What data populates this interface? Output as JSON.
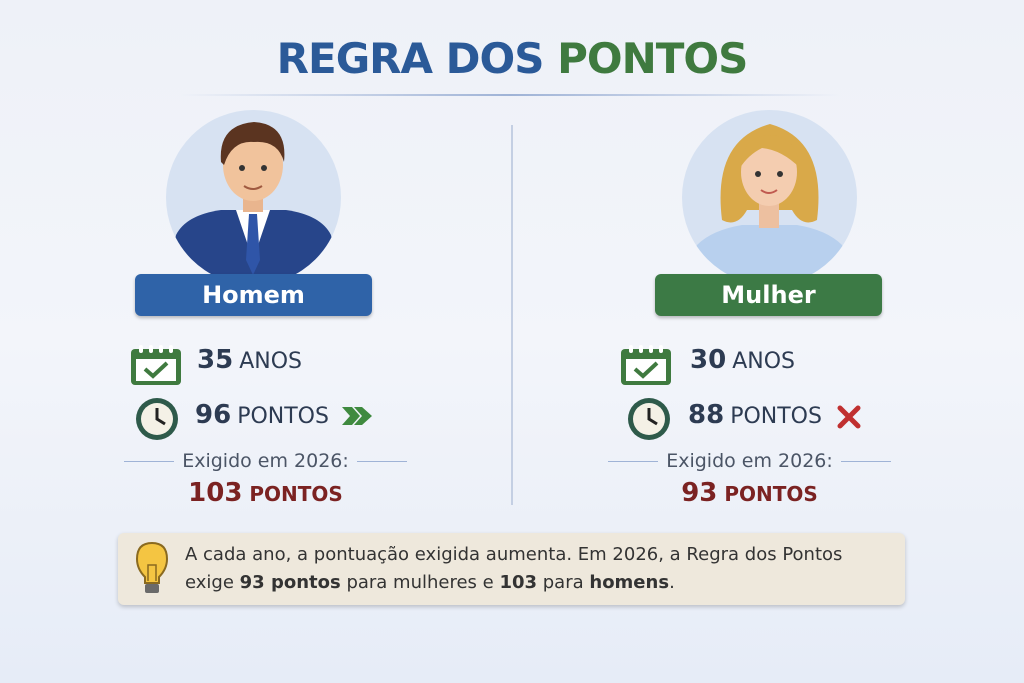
{
  "title": {
    "part1": "REGRA DOS",
    "part2": "PONTOS"
  },
  "colors": {
    "blue": "#2b5a98",
    "green": "#3f7a3f",
    "required": "#7b2222"
  },
  "left": {
    "label": "Homem",
    "age_value": "35",
    "age_unit": "ANOS",
    "points_value": "96",
    "points_unit": "PONTOS",
    "status_icon": "double-chevron-right-icon",
    "required_label": "Exigido em 2026:",
    "required_value": "103",
    "required_unit": "PONTOS"
  },
  "right": {
    "label": "Mulher",
    "age_value": "30",
    "age_unit": "ANOS",
    "points_value": "88",
    "points_unit": "PONTOS",
    "status_icon": "x-icon",
    "required_label": "Exigido em 2026:",
    "required_value": "93",
    "required_unit": "PONTOS"
  },
  "tip": {
    "icon": "lightbulb-icon",
    "line1": "A cada ano, a pontuação exigida aumenta. Em 2026, a Regra dos Pontos",
    "line2_a": "exige ",
    "line2_b": "93 pontos",
    "line2_c": " para mulheres e ",
    "line2_d": "103",
    "line2_e": " para ",
    "line2_f": "homens",
    "line2_g": "."
  }
}
